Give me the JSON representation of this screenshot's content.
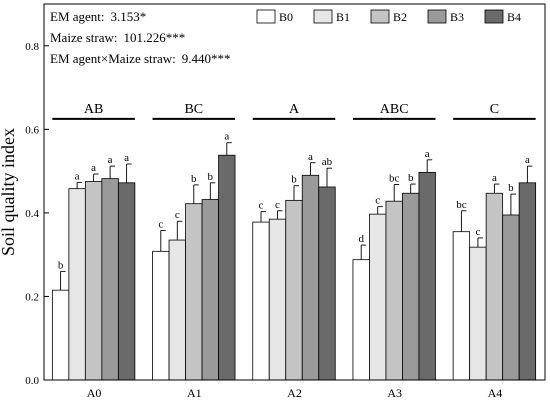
{
  "chart_data": {
    "type": "bar",
    "ylabel": "Soil quality index",
    "xlabel": "",
    "ylim": [
      0,
      0.9
    ],
    "yticks": [
      "0.0",
      "0.2",
      "0.4",
      "0.6",
      "0.8"
    ],
    "categories": [
      "A0",
      "A1",
      "A2",
      "A3",
      "A4"
    ],
    "series": [
      {
        "name": "B0",
        "color": "#ffffff",
        "values": [
          0.215,
          0.308,
          0.378,
          0.288,
          0.355
        ],
        "errors": [
          0.045,
          0.05,
          0.025,
          0.035,
          0.05
        ],
        "letters": [
          "b",
          "c",
          "c",
          "d",
          "bc"
        ]
      },
      {
        "name": "B1",
        "color": "#e6e6e6",
        "values": [
          0.458,
          0.335,
          0.385,
          0.397,
          0.318
        ],
        "errors": [
          0.015,
          0.045,
          0.02,
          0.018,
          0.022
        ],
        "letters": [
          "a",
          "c",
          "c",
          "c",
          "c"
        ]
      },
      {
        "name": "B2",
        "color": "#c4c4c4",
        "values": [
          0.475,
          0.422,
          0.43,
          0.428,
          0.447
        ],
        "errors": [
          0.018,
          0.045,
          0.035,
          0.04,
          0.022
        ],
        "letters": [
          "a",
          "b",
          "b",
          "bc",
          "a"
        ]
      },
      {
        "name": "B3",
        "color": "#9a9a9a",
        "values": [
          0.482,
          0.432,
          0.49,
          0.447,
          0.395
        ],
        "errors": [
          0.03,
          0.04,
          0.03,
          0.022,
          0.05
        ],
        "letters": [
          "a",
          "b",
          "a",
          "b",
          "b"
        ]
      },
      {
        "name": "B4",
        "color": "#6a6a6a",
        "values": [
          0.472,
          0.538,
          0.462,
          0.497,
          0.472
        ],
        "errors": [
          0.045,
          0.03,
          0.045,
          0.03,
          0.04
        ],
        "letters": [
          "a",
          "a",
          "ab",
          "a",
          "a"
        ]
      }
    ],
    "group_letters": [
      "AB",
      "BC",
      "A",
      "ABC",
      "C"
    ],
    "group_line_level": 0.625,
    "stats": [
      {
        "label": "EM agent:",
        "value": "3.153*"
      },
      {
        "label": "Maize straw:",
        "value": "101.226***"
      },
      {
        "label": "EM agent×Maize straw:",
        "value": "9.440***"
      }
    ],
    "legend_position": "top-right"
  }
}
